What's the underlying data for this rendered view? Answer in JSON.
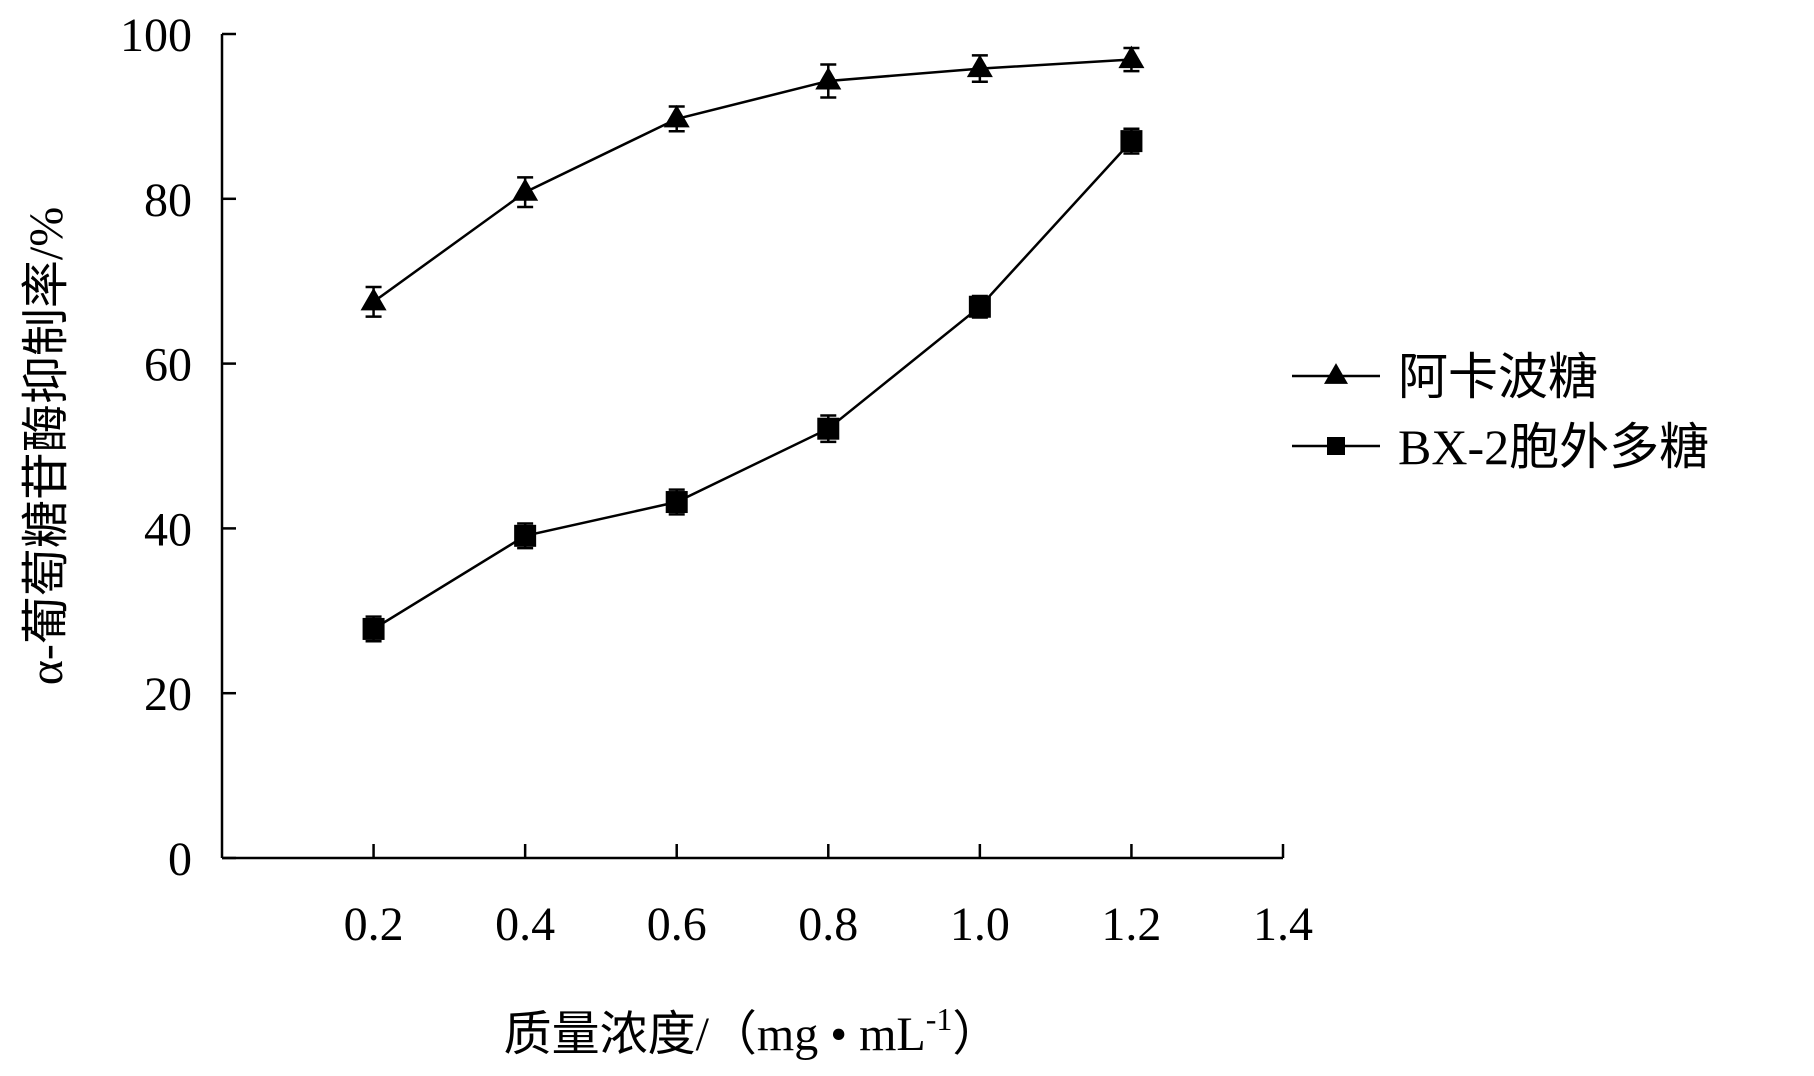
{
  "chart_data": {
    "type": "line",
    "title": "",
    "xlabel": "质量浓度/（mg • mL",
    "xlabel_superscript": "-1",
    "xlabel_suffix": "）",
    "ylabel": "α-葡萄糖苷酶抑制率/%",
    "xlim": [
      0,
      1.4
    ],
    "ylim": [
      0,
      100
    ],
    "xticks": [
      "0.2",
      "0.4",
      "0.6",
      "0.8",
      "1.0",
      "1.2",
      "1.4"
    ],
    "xtick_values": [
      0.2,
      0.4,
      0.6,
      0.8,
      1.0,
      1.2,
      1.4
    ],
    "yticks": [
      "0",
      "20",
      "40",
      "60",
      "80",
      "100"
    ],
    "ytick_values": [
      0,
      20,
      40,
      60,
      80,
      100
    ],
    "grid": false,
    "legend_position": "right",
    "x": [
      0.2,
      0.4,
      0.6,
      0.8,
      1.0,
      1.2
    ],
    "series": [
      {
        "name": "阿卡波糖",
        "marker": "triangle",
        "values": [
          67.5,
          80.8,
          89.7,
          94.3,
          95.8,
          96.9
        ],
        "errors": [
          1.8,
          1.8,
          1.5,
          2.0,
          1.6,
          1.4
        ]
      },
      {
        "name": "BX-2胞外多糖",
        "marker": "square",
        "values": [
          27.8,
          39.1,
          43.2,
          52.1,
          66.9,
          87.0
        ],
        "errors": [
          1.5,
          1.5,
          1.5,
          1.6,
          1.3,
          1.5
        ]
      }
    ]
  }
}
